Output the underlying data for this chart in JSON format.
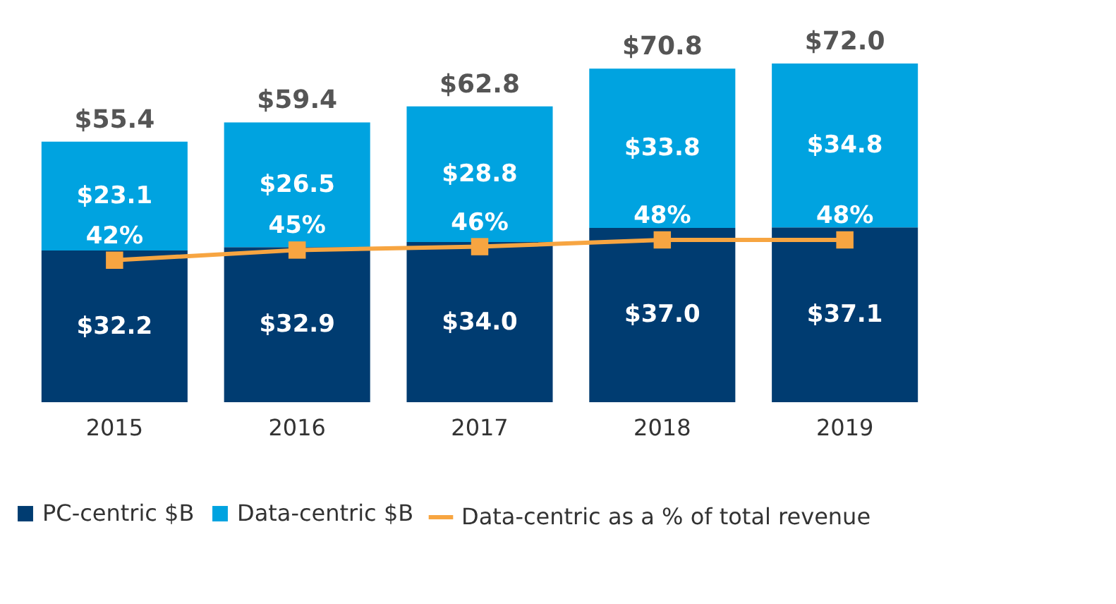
{
  "chart_data": {
    "type": "bar",
    "stacked": true,
    "categories": [
      "2015",
      "2016",
      "2017",
      "2018",
      "2019"
    ],
    "tick_labels": "x",
    "legend": "bottom",
    "grid": false,
    "series": [
      {
        "name": "PC-centric $B",
        "color": "#003c71",
        "values": [
          32.2,
          32.9,
          34.0,
          37.0,
          37.1
        ],
        "value_labels": [
          "$32.2",
          "$32.9",
          "$34.0",
          "$37.0",
          "$37.1"
        ]
      },
      {
        "name": "Data-centric $B",
        "color": "#00a3e0",
        "values": [
          23.1,
          26.5,
          28.8,
          33.8,
          34.8
        ],
        "value_labels": [
          "$23.1",
          "$26.5",
          "$28.8",
          "$33.8",
          "$34.8"
        ]
      },
      {
        "name": "Data-centric as a % of total revenue",
        "type": "line",
        "axis": "y2",
        "marker": "square",
        "color": "#f7a541",
        "values": [
          42,
          45,
          46,
          48,
          48
        ],
        "value_labels": [
          "42%",
          "45%",
          "46%",
          "48%",
          "48%"
        ]
      }
    ],
    "totals": [
      "$55.4",
      "$59.4",
      "$62.8",
      "$70.8",
      "$72.0"
    ]
  }
}
